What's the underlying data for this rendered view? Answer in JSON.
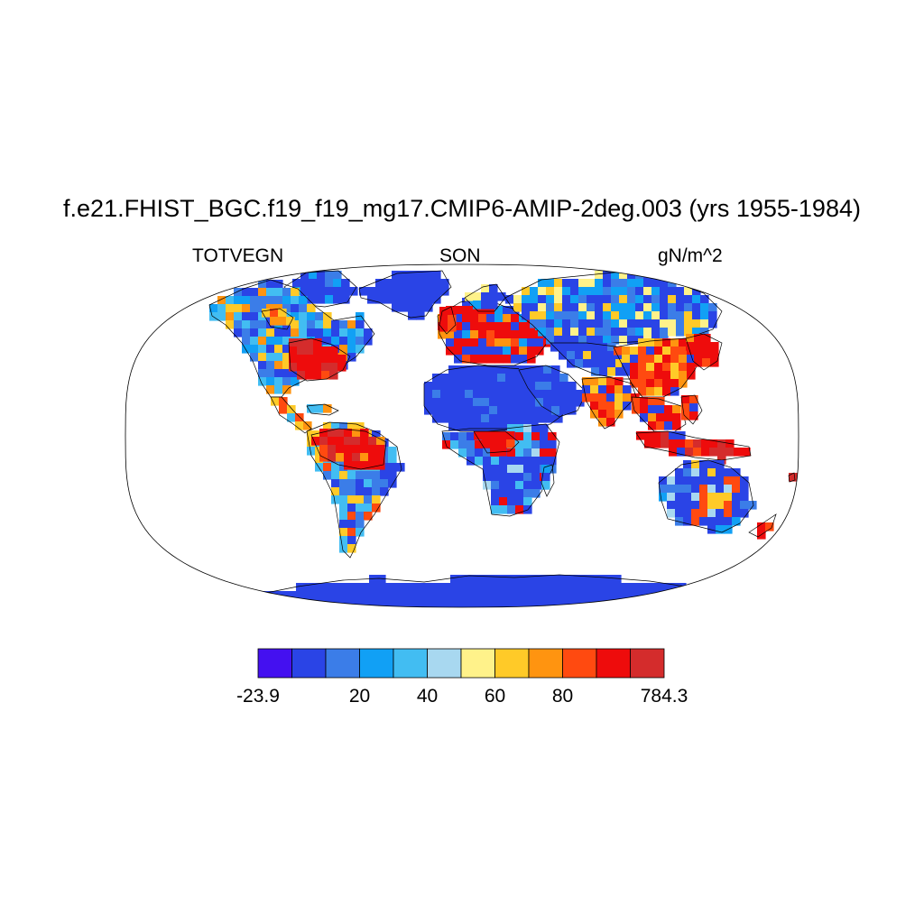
{
  "figure": {
    "title": "f.e21.FHIST_BGC.f19_f19_mg17.CMIP6-AMIP-2deg.003 (yrs 1955-1984)",
    "left_string": "TOTVEGN",
    "center_string": "SON",
    "right_string": "gN/m^2"
  },
  "map": {
    "projection": "Robinson",
    "variable": "TOTVEGN",
    "season": "SON",
    "units": "gN/m^2",
    "fill_style": "raster cells, 2-degree grid",
    "regions_high_values": [
      "Amazon basin",
      "eastern North America",
      "western/central Europe",
      "Congo basin",
      "Southeast Asia",
      "New Guinea",
      "eastern China"
    ],
    "regions_low_values": [
      "Sahara",
      "Arabia",
      "Antarctica",
      "Greenland",
      "central Australia",
      "Siberia"
    ]
  },
  "colorbar": {
    "colors": [
      "#4410f0",
      "#2a44e6",
      "#3b7de8",
      "#11a0f5",
      "#42bdf2",
      "#a8d8f0",
      "#fff28a",
      "#ffca28",
      "#ff9410",
      "#ff4a10",
      "#ee0c0c",
      "#d42c2c"
    ],
    "labels": [
      {
        "text": "-23.9",
        "boundary": 0
      },
      {
        "text": "20",
        "boundary": 3
      },
      {
        "text": "40",
        "boundary": 5
      },
      {
        "text": "60",
        "boundary": 7
      },
      {
        "text": "80",
        "boundary": 9
      },
      {
        "text": "784.3",
        "boundary": 12
      }
    ]
  }
}
